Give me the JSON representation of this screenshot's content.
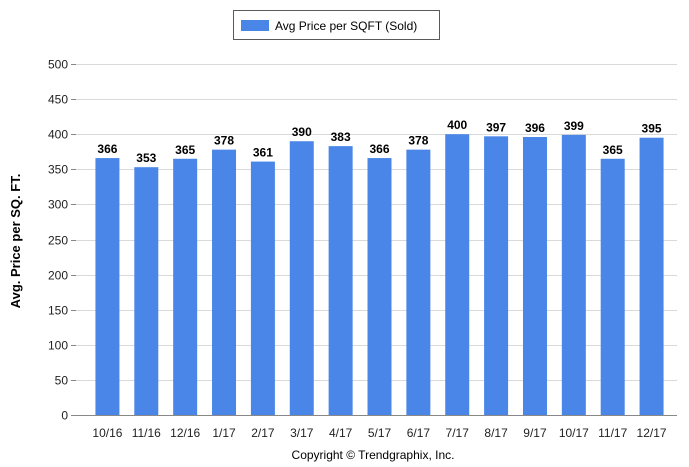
{
  "chart_data": {
    "type": "bar",
    "categories": [
      "10/16",
      "11/16",
      "12/16",
      "1/17",
      "2/17",
      "3/17",
      "4/17",
      "5/17",
      "6/17",
      "7/17",
      "8/17",
      "9/17",
      "10/17",
      "11/17",
      "12/17"
    ],
    "series": [
      {
        "name": "Avg Price per SQFT (Sold)",
        "values": [
          366,
          353,
          365,
          378,
          361,
          390,
          383,
          366,
          378,
          400,
          397,
          396,
          399,
          365,
          395
        ]
      }
    ],
    "data_labels": [
      "366",
      "353",
      "365",
      "378",
      "361",
      "390",
      "383",
      "366",
      "378",
      "400",
      "397",
      "396",
      "399",
      "365",
      "395"
    ],
    "ylabel": "Avg. Price per SQ. FT.",
    "xlabel": "",
    "ylim": [
      0,
      500
    ],
    "yticks": [
      0,
      50,
      100,
      150,
      200,
      250,
      300,
      350,
      400,
      450,
      500
    ],
    "ytick_labels": [
      "0",
      "50",
      "100",
      "150",
      "200",
      "250",
      "300",
      "350",
      "400",
      "450",
      "500"
    ],
    "grid": true,
    "legend": "top-center",
    "colors": {
      "bar": "#4a86e8",
      "grid": "#d9d9d9"
    }
  },
  "legend": {
    "label": "Avg Price per SQFT (Sold)"
  },
  "footer": {
    "copyright": "Copyright © Trendgraphix, Inc."
  }
}
